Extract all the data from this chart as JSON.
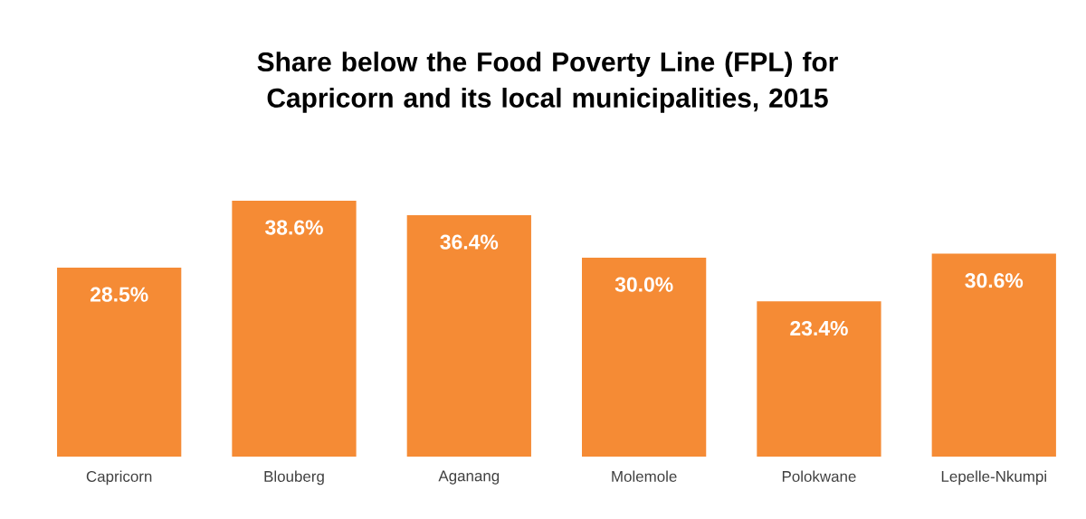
{
  "chart_data": {
    "type": "bar",
    "title": "Share below the Food Poverty Line (FPL) for Capricorn and its local  municipalities, 2015",
    "categories": [
      "Capricorn",
      "Blouberg",
      "Aganang",
      "Molemole",
      "Polokwane",
      "Lepelle-Nkumpi"
    ],
    "values": [
      28.5,
      38.6,
      36.4,
      30.0,
      23.4,
      30.6
    ],
    "value_labels": [
      "28.5%",
      "38.6%",
      "36.4%",
      "30.0%",
      "23.4%",
      "30.6%"
    ],
    "color": "#f58b35"
  }
}
